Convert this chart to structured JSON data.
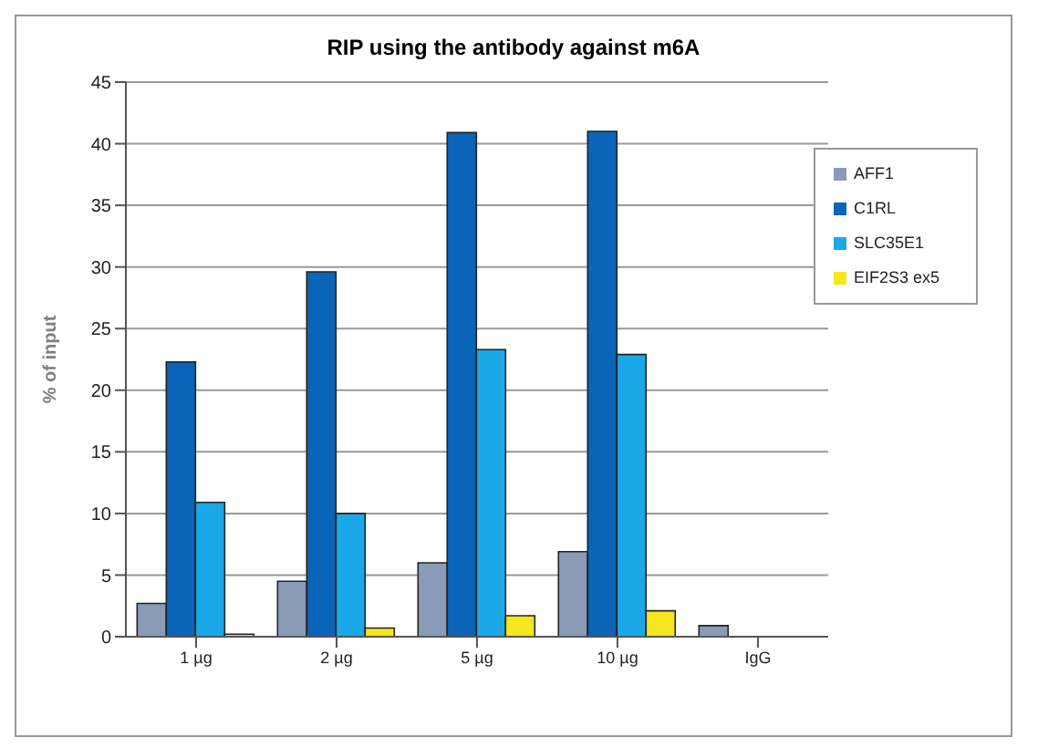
{
  "chart_data": {
    "type": "bar",
    "title": "RIP using the antibody against m6A",
    "ylabel": "% of input",
    "categories": [
      "1 µg",
      "2 µg",
      "5 µg",
      "10 µg",
      "IgG"
    ],
    "series": [
      {
        "name": "AFF1",
        "color": "#8a9bb8",
        "values": [
          2.7,
          4.5,
          6,
          6.9,
          0.9
        ]
      },
      {
        "name": "C1RL",
        "color": "#0a64b8",
        "values": [
          22.3,
          29.6,
          40.9,
          41,
          0
        ]
      },
      {
        "name": "SLC35E1",
        "color": "#1aa8e8",
        "values": [
          10.9,
          10,
          23.3,
          22.9,
          0
        ]
      },
      {
        "name": "EIF2S3 ex5",
        "color": "#f5e61e",
        "values": [
          0.2,
          0.7,
          1.7,
          2.1,
          0
        ]
      }
    ],
    "ylim": [
      0,
      45
    ],
    "yticks": [
      0,
      5,
      10,
      15,
      20,
      25,
      30,
      35,
      40,
      45
    ],
    "grid": "y",
    "legend": "top right"
  }
}
